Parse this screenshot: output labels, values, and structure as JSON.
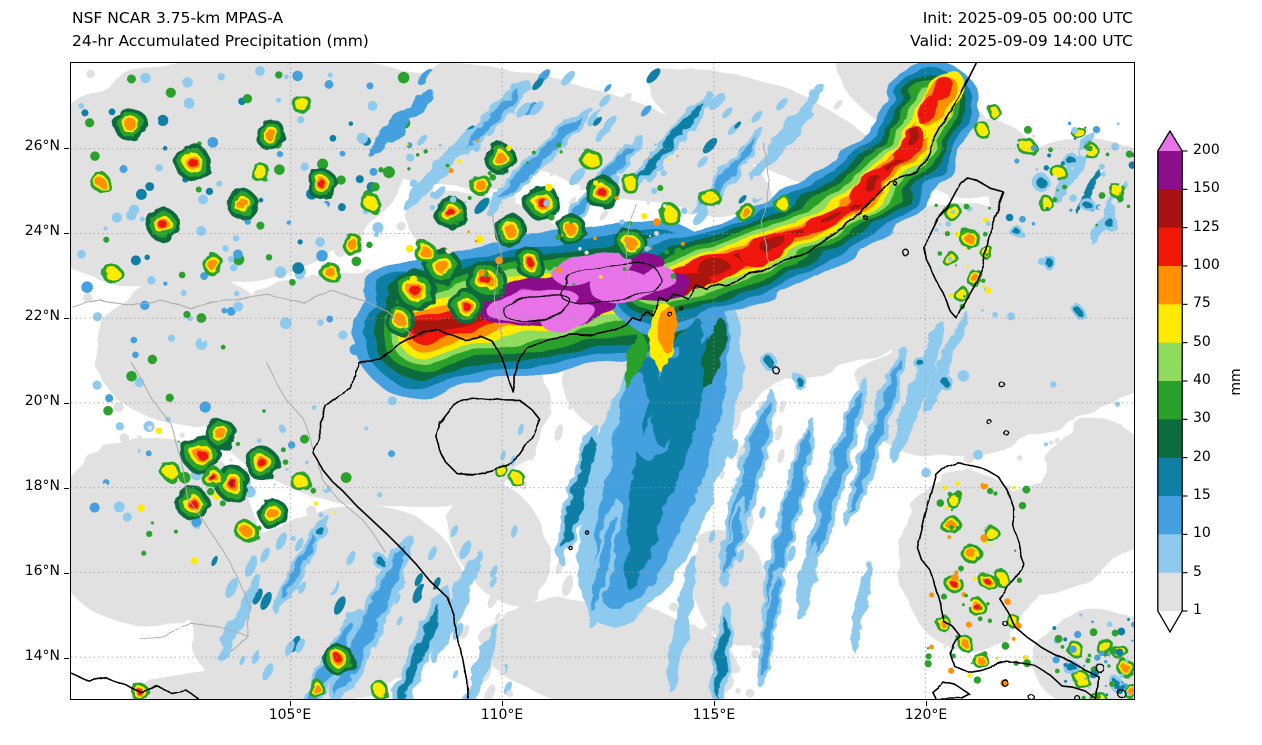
{
  "header": {
    "title_line1": "NSF NCAR 3.75-km MPAS-A",
    "title_line2": "24-hr Accumulated Precipitation (mm)",
    "init_label": "Init: 2025-09-05 00:00 UTC",
    "valid_label": "Valid: 2025-09-09 14:00 UTC"
  },
  "map": {
    "lat_ticks": [
      "26°N",
      "24°N",
      "22°N",
      "20°N",
      "18°N",
      "16°N",
      "14°N"
    ],
    "lon_ticks": [
      "105°E",
      "110°E",
      "115°E",
      "120°E"
    ],
    "lon_range_deg_e": [
      100,
      125
    ],
    "lat_range_deg_n": [
      13,
      28
    ]
  },
  "colorbar": {
    "unit": "mm",
    "levels": [
      1,
      5,
      10,
      15,
      20,
      30,
      40,
      50,
      75,
      100,
      125,
      150,
      200
    ],
    "segment_colors": [
      "#e1e1e1",
      "#8ec9ee",
      "#45a0e0",
      "#0f7fa5",
      "#0c6b3c",
      "#2aa12a",
      "#8fdc5f",
      "#ffeb00",
      "#ff9000",
      "#f01908",
      "#a81211",
      "#8c108c"
    ],
    "under_color": "#ffffff",
    "over_color": "#e873e8"
  }
}
